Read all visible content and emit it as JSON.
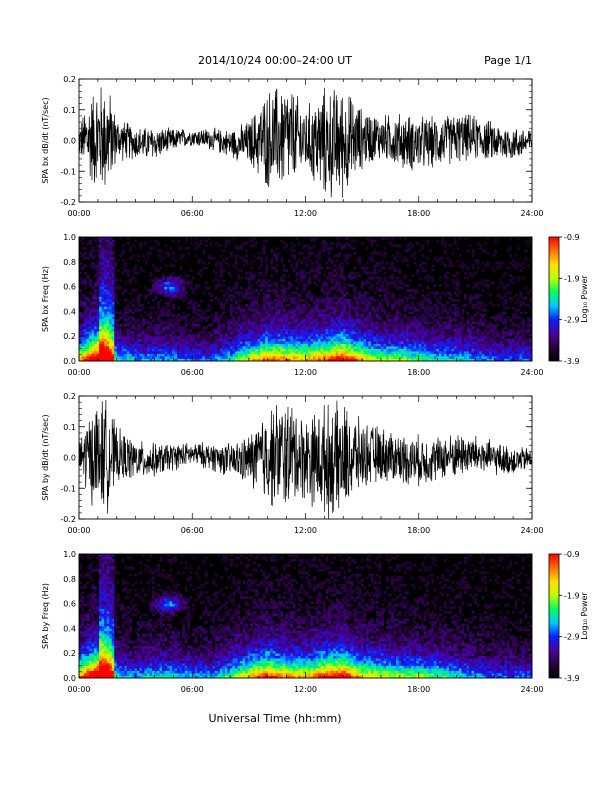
{
  "header": {
    "title": "2014/10/24  00:00–24:00 UT",
    "page": "Page 1/1"
  },
  "xlabel": "Universal Time (hh:mm)",
  "colors": {
    "background": "#ffffff",
    "trace": "#000000",
    "colormap": [
      "#000000",
      "#2a0040",
      "#4a00a0",
      "#0a20ff",
      "#00c8ff",
      "#00ff60",
      "#c0ff00",
      "#ffe000",
      "#ff7000",
      "#ff0000"
    ]
  },
  "chart_data": [
    {
      "type": "line",
      "ylabel": "SPA bx dB/dt (nT/sec)",
      "xlim": [
        "00:00",
        "24:00"
      ],
      "xticks": [
        "00:00",
        "06:00",
        "12:00",
        "18:00",
        "24:00"
      ],
      "ylim": [
        -0.2,
        0.2
      ],
      "yticks": [
        "-0.2",
        "-0.1",
        "0.0",
        "0.1",
        "0.2"
      ],
      "envelope_series": {
        "name": "",
        "hours": [
          0,
          0.5,
          1,
          1.5,
          2,
          3,
          4,
          5,
          6,
          7,
          8,
          9,
          10,
          11,
          12,
          13,
          14,
          15,
          16,
          17,
          18,
          19,
          20,
          21,
          22,
          23,
          24
        ],
        "amplitude": [
          0.05,
          0.15,
          0.2,
          0.2,
          0.08,
          0.06,
          0.06,
          0.04,
          0.03,
          0.04,
          0.05,
          0.08,
          0.18,
          0.2,
          0.12,
          0.2,
          0.2,
          0.11,
          0.08,
          0.1,
          0.1,
          0.09,
          0.09,
          0.08,
          0.07,
          0.06,
          0.05
        ]
      }
    },
    {
      "type": "heatmap",
      "ylabel": "SPA bx Freq (Hz)",
      "xlim": [
        "00:00",
        "24:00"
      ],
      "xticks": [
        "00:00",
        "06:00",
        "12:00",
        "18:00",
        "24:00"
      ],
      "ylim": [
        0.0,
        1.0
      ],
      "yticks": [
        "0.0",
        "0.2",
        "0.4",
        "0.6",
        "0.8",
        "1.0"
      ],
      "colorbar": {
        "label": "Log₁₀ Power",
        "ticks": [
          "-0.9",
          "-1.9",
          "-2.9",
          "-3.9"
        ],
        "range": [
          -3.9,
          -0.9
        ]
      },
      "activity_by_hour": {
        "hours": [
          0,
          1,
          1.5,
          2,
          3,
          4,
          5,
          6,
          7,
          8,
          9,
          10,
          11,
          12,
          13,
          14,
          15,
          16,
          17,
          18,
          19,
          20,
          21,
          22,
          23,
          24
        ],
        "level": [
          0.55,
          0.9,
          0.8,
          0.35,
          0.3,
          0.3,
          0.3,
          0.25,
          0.25,
          0.35,
          0.5,
          0.65,
          0.6,
          0.55,
          0.65,
          0.75,
          0.55,
          0.45,
          0.45,
          0.4,
          0.35,
          0.35,
          0.3,
          0.25,
          0.25,
          0.25
        ]
      }
    },
    {
      "type": "line",
      "ylabel": "SPA by dB/dt (nT/sec)",
      "xlim": [
        "00:00",
        "24:00"
      ],
      "xticks": [
        "00:00",
        "06:00",
        "12:00",
        "18:00",
        "24:00"
      ],
      "ylim": [
        -0.2,
        0.2
      ],
      "yticks": [
        "-0.2",
        "-0.1",
        "0.0",
        "0.1",
        "0.2"
      ],
      "envelope_series": {
        "name": "",
        "hours": [
          0,
          0.5,
          1,
          1.5,
          2,
          3,
          4,
          5,
          6,
          7,
          8,
          9,
          10,
          11,
          12,
          13,
          14,
          15,
          16,
          17,
          18,
          19,
          20,
          21,
          22,
          23,
          24
        ],
        "amplitude": [
          0.07,
          0.15,
          0.2,
          0.2,
          0.1,
          0.07,
          0.06,
          0.05,
          0.04,
          0.05,
          0.06,
          0.09,
          0.18,
          0.2,
          0.15,
          0.2,
          0.2,
          0.12,
          0.1,
          0.09,
          0.09,
          0.08,
          0.08,
          0.07,
          0.06,
          0.05,
          0.04
        ]
      }
    },
    {
      "type": "heatmap",
      "ylabel": "SPA by Freq (Hz)",
      "xlim": [
        "00:00",
        "24:00"
      ],
      "xticks": [
        "00:00",
        "06:00",
        "12:00",
        "18:00",
        "24:00"
      ],
      "ylim": [
        0.0,
        1.0
      ],
      "yticks": [
        "0.0",
        "0.2",
        "0.4",
        "0.6",
        "0.8",
        "1.0"
      ],
      "colorbar": {
        "label": "Log₁₀ Power",
        "ticks": [
          "-0.9",
          "-1.9",
          "-2.9",
          "-3.9"
        ],
        "range": [
          -3.9,
          -0.9
        ]
      },
      "activity_by_hour": {
        "hours": [
          0,
          1,
          1.5,
          2,
          3,
          4,
          5,
          6,
          7,
          8,
          9,
          10,
          11,
          12,
          13,
          14,
          15,
          16,
          17,
          18,
          19,
          20,
          21,
          22,
          23,
          24
        ],
        "level": [
          0.6,
          0.9,
          0.8,
          0.35,
          0.3,
          0.35,
          0.35,
          0.3,
          0.3,
          0.4,
          0.55,
          0.7,
          0.6,
          0.55,
          0.7,
          0.75,
          0.55,
          0.5,
          0.45,
          0.45,
          0.4,
          0.35,
          0.3,
          0.25,
          0.25,
          0.25
        ]
      }
    }
  ]
}
